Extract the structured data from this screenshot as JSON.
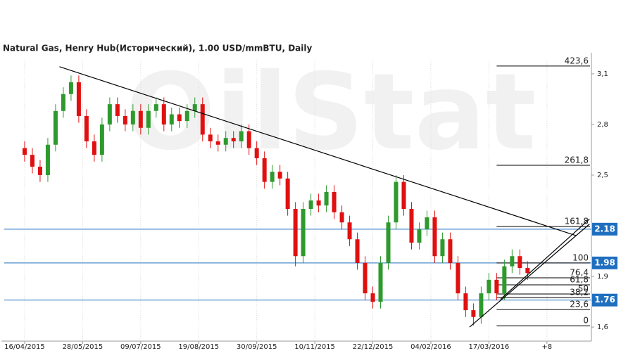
{
  "chart_data": {
    "type": "candlestick",
    "title": "Natural Gas, Henry Hub(Исторический), 1.00 USD/mmBTU, Daily",
    "watermark": "OilStat",
    "up_color": "#2e9a2e",
    "down_color": "#e01010",
    "xlim": [
      -12,
      293
    ],
    "xticks": [
      {
        "value": 0,
        "label": "16/04/2015"
      },
      {
        "value": 30,
        "label": "28/05/2015"
      },
      {
        "value": 60,
        "label": "09/07/2015"
      },
      {
        "value": 90,
        "label": "19/08/2015"
      },
      {
        "value": 120,
        "label": "30/09/2015"
      },
      {
        "value": 150,
        "label": "10/11/2015"
      },
      {
        "value": 180,
        "label": "22/12/2015"
      },
      {
        "value": 210,
        "label": "04/02/2016"
      },
      {
        "value": 240,
        "label": "17/03/2016"
      },
      {
        "value": 270,
        "label": "+8"
      }
    ],
    "ylim": [
      1.517,
      3.183
    ],
    "yticks": [
      {
        "value": 1.6,
        "label": "1,6"
      },
      {
        "value": 1.9,
        "label": "1,9"
      },
      {
        "value": 2.5,
        "label": "2,5"
      },
      {
        "value": 2.8,
        "label": "2,8"
      },
      {
        "value": 3.1,
        "label": "3,1"
      }
    ],
    "grid": true,
    "x": [
      0,
      4,
      8,
      12,
      16,
      20,
      24,
      28,
      32,
      36,
      40,
      44,
      48,
      52,
      56,
      60,
      64,
      68,
      72,
      76,
      80,
      84,
      88,
      92,
      96,
      100,
      104,
      108,
      112,
      116,
      120,
      124,
      128,
      132,
      136,
      140,
      144,
      148,
      152,
      156,
      160,
      164,
      168,
      172,
      176,
      180,
      184,
      188,
      192,
      196,
      200,
      204,
      208,
      212,
      216,
      220,
      224,
      228,
      232,
      236,
      240,
      244,
      248,
      252,
      256,
      260
    ],
    "open": [
      2.66,
      2.62,
      2.55,
      2.5,
      2.68,
      2.88,
      2.98,
      3.05,
      2.85,
      2.7,
      2.62,
      2.8,
      2.92,
      2.85,
      2.8,
      2.88,
      2.78,
      2.88,
      2.92,
      2.8,
      2.86,
      2.82,
      2.88,
      2.92,
      2.74,
      2.7,
      2.68,
      2.72,
      2.7,
      2.76,
      2.66,
      2.6,
      2.46,
      2.52,
      2.48,
      2.3,
      2.02,
      2.3,
      2.35,
      2.32,
      2.4,
      2.28,
      2.22,
      2.12,
      1.98,
      1.8,
      1.75,
      1.98,
      2.22,
      2.46,
      2.3,
      2.1,
      2.18,
      2.25,
      2.02,
      2.12,
      1.98,
      1.8,
      1.7,
      1.66,
      1.8,
      1.88,
      1.8,
      1.96,
      2.02,
      1.95
    ],
    "high": [
      2.7,
      2.66,
      2.59,
      2.72,
      2.92,
      3.02,
      3.09,
      3.09,
      2.89,
      2.74,
      2.84,
      2.96,
      2.96,
      2.89,
      2.92,
      2.92,
      2.92,
      2.96,
      2.96,
      2.9,
      2.9,
      2.92,
      2.96,
      2.96,
      2.78,
      2.74,
      2.76,
      2.76,
      2.8,
      2.8,
      2.7,
      2.64,
      2.56,
      2.56,
      2.52,
      2.34,
      2.34,
      2.39,
      2.39,
      2.44,
      2.44,
      2.32,
      2.26,
      2.16,
      2.02,
      1.84,
      2.02,
      2.26,
      2.5,
      2.5,
      2.34,
      2.22,
      2.29,
      2.29,
      2.16,
      2.16,
      2.02,
      1.84,
      1.74,
      1.84,
      1.92,
      1.92,
      2.0,
      2.06,
      2.06,
      1.99
    ],
    "low": [
      2.58,
      2.51,
      2.46,
      2.46,
      2.64,
      2.84,
      2.94,
      2.81,
      2.66,
      2.58,
      2.58,
      2.76,
      2.81,
      2.76,
      2.76,
      2.74,
      2.74,
      2.84,
      2.76,
      2.76,
      2.78,
      2.78,
      2.84,
      2.7,
      2.66,
      2.64,
      2.64,
      2.66,
      2.66,
      2.62,
      2.56,
      2.42,
      2.42,
      2.44,
      2.26,
      1.96,
      1.98,
      2.26,
      2.28,
      2.28,
      2.24,
      2.18,
      2.08,
      1.94,
      1.76,
      1.71,
      1.71,
      1.94,
      2.18,
      2.26,
      2.06,
      2.06,
      2.14,
      1.98,
      1.98,
      1.94,
      1.76,
      1.66,
      1.61,
      1.62,
      1.76,
      1.76,
      1.76,
      1.92,
      1.91,
      1.88
    ],
    "close": [
      2.62,
      2.55,
      2.5,
      2.68,
      2.88,
      2.98,
      3.05,
      2.85,
      2.7,
      2.62,
      2.8,
      2.92,
      2.85,
      2.8,
      2.88,
      2.78,
      2.88,
      2.92,
      2.8,
      2.86,
      2.82,
      2.88,
      2.92,
      2.74,
      2.7,
      2.68,
      2.72,
      2.7,
      2.76,
      2.66,
      2.6,
      2.46,
      2.52,
      2.48,
      2.3,
      2.02,
      2.3,
      2.35,
      2.32,
      2.4,
      2.28,
      2.22,
      2.12,
      1.98,
      1.8,
      1.75,
      1.98,
      2.22,
      2.46,
      2.3,
      2.1,
      2.18,
      2.25,
      2.02,
      2.12,
      1.98,
      1.8,
      1.7,
      1.66,
      1.8,
      1.88,
      1.8,
      1.96,
      2.02,
      1.95,
      1.92
    ],
    "price_levels": [
      2.18,
      1.98,
      1.76
    ],
    "level_color": "#1f6fbf",
    "fib_levels": [
      {
        "value": 3.146,
        "label": "423,6"
      },
      {
        "value": 2.558,
        "label": "261,8"
      },
      {
        "value": 2.196,
        "label": "161,8"
      },
      {
        "value": 1.98,
        "label": "100"
      },
      {
        "value": 1.892,
        "label": "76,4"
      },
      {
        "value": 1.85,
        "label": "61,8"
      },
      {
        "value": 1.796,
        "label": "50"
      },
      {
        "value": 1.775,
        "label": "38,2"
      },
      {
        "value": 1.704,
        "label": "23,6"
      },
      {
        "value": 1.608,
        "label": "0"
      }
    ],
    "fib_x": [
      244,
      293
    ],
    "trendlines": [
      {
        "x": [
          18,
          285
        ],
        "y": [
          3.142,
          2.142
        ]
      },
      {
        "x": [
          230,
          292
        ],
        "y": [
          1.6,
          2.21
        ]
      },
      {
        "x": [
          246,
          292
        ],
        "y": [
          1.765,
          2.24
        ]
      }
    ]
  }
}
